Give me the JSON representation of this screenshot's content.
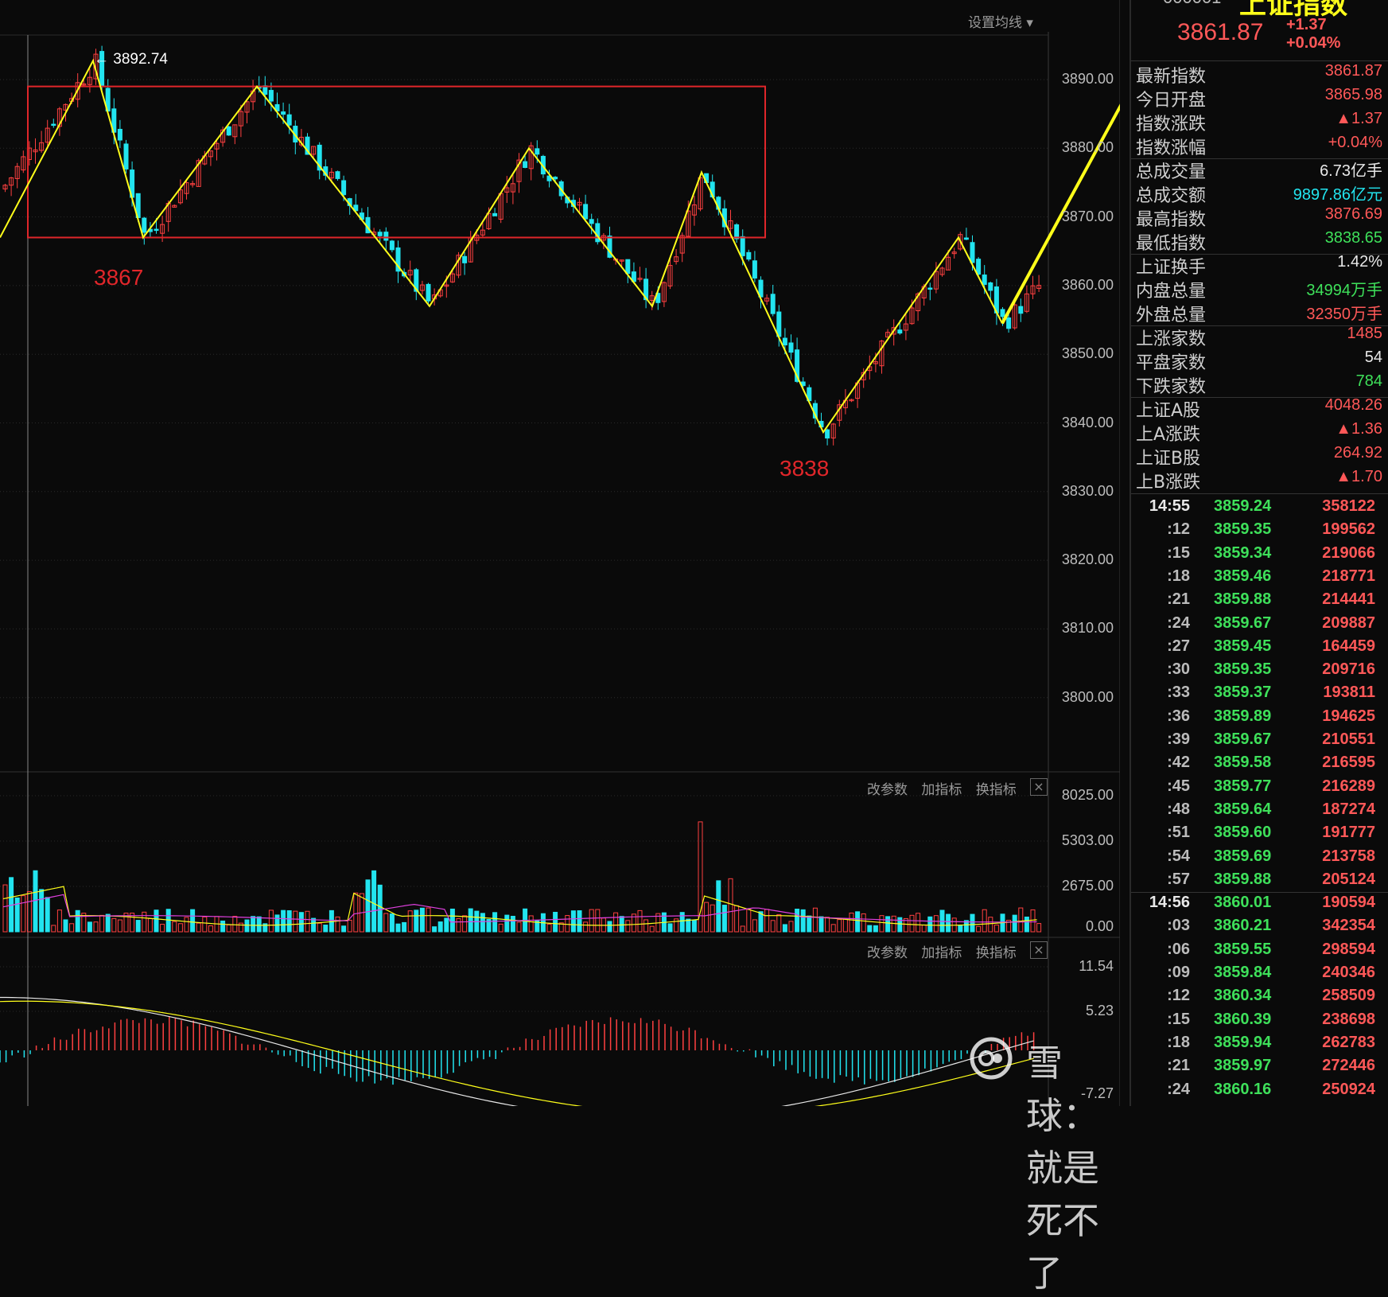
{
  "chart_toolbar": {
    "ma_settings": "设置均线 ▾"
  },
  "price_axis": [
    "3890.00",
    "3880.00",
    "3870.00",
    "3860.00",
    "3850.00",
    "3840.00",
    "3830.00",
    "3820.00",
    "3810.00",
    "3800.00"
  ],
  "volume_panel": {
    "buttons": [
      "改参数",
      "加指标",
      "换指标"
    ],
    "close": "×",
    "axis": [
      "8025.00",
      "5303.00",
      "2675.00",
      "0.00"
    ]
  },
  "macd_panel": {
    "buttons": [
      "改参数",
      "加指标",
      "换指标"
    ],
    "close": "×",
    "axis": [
      "11.54",
      "5.23",
      "-7.27"
    ]
  },
  "annotations": {
    "high_label": "← 3892.74",
    "support_label": "3867",
    "low_label": "3838"
  },
  "colors": {
    "up": "#ff4040",
    "down": "#22e4ef",
    "zigzag": "#ffff1a",
    "box": "#e0262a",
    "ma_vol_1": "#ffff1a",
    "ma_vol_2": "#e040e0",
    "green_value": "#3ee05a",
    "red_value": "#ff5858"
  },
  "header": {
    "code": "000001",
    "name": "上证指数",
    "price": "3861.87",
    "change": "+1.37",
    "change_pct": "+0.04%"
  },
  "stats": [
    {
      "label": "最新指数",
      "value": "3861.87",
      "color": "#ff5858"
    },
    {
      "label": "今日开盘",
      "value": "3865.98",
      "color": "#ff5858"
    },
    {
      "label": "指数涨跌",
      "value": "▲1.37",
      "color": "#ff5858"
    },
    {
      "label": "指数涨幅",
      "value": "+0.04%",
      "color": "#ff5858"
    },
    {
      "label": "总成交量",
      "value": "6.73亿手",
      "color": "#e8e8e8"
    },
    {
      "label": "总成交额",
      "value": "9897.86亿元",
      "color": "#22e4ef"
    },
    {
      "label": "最高指数",
      "value": "3876.69",
      "color": "#ff5858"
    },
    {
      "label": "最低指数",
      "value": "3838.65",
      "color": "#3ee05a"
    },
    {
      "label": "上证换手",
      "value": "1.42%",
      "color": "#e8e8e8"
    },
    {
      "label": "内盘总量",
      "value": "34994万手",
      "color": "#3ee05a"
    },
    {
      "label": "外盘总量",
      "value": "32350万手",
      "color": "#ff5858"
    },
    {
      "label": "上涨家数",
      "value": "1485",
      "color": "#ff5858"
    },
    {
      "label": "平盘家数",
      "value": "54",
      "color": "#e8e8e8"
    },
    {
      "label": "下跌家数",
      "value": "784",
      "color": "#3ee05a"
    },
    {
      "label": "上证A股",
      "value": "4048.26",
      "color": "#ff5858"
    },
    {
      "label": "上A涨跌",
      "value": "▲1.36",
      "color": "#ff5858"
    },
    {
      "label": "上证B股",
      "value": "264.92",
      "color": "#ff5858"
    },
    {
      "label": "上B涨跌",
      "value": "▲1.70",
      "color": "#ff5858"
    }
  ],
  "ticks": [
    {
      "time": "14:55",
      "price": "3859.24",
      "vol": "358122"
    },
    {
      "time": ":12",
      "price": "3859.35",
      "vol": "199562"
    },
    {
      "time": ":15",
      "price": "3859.34",
      "vol": "219066"
    },
    {
      "time": ":18",
      "price": "3859.46",
      "vol": "218771"
    },
    {
      "time": ":21",
      "price": "3859.88",
      "vol": "214441"
    },
    {
      "time": ":24",
      "price": "3859.67",
      "vol": "209887"
    },
    {
      "time": ":27",
      "price": "3859.45",
      "vol": "164459"
    },
    {
      "time": ":30",
      "price": "3859.35",
      "vol": "209716"
    },
    {
      "time": ":33",
      "price": "3859.37",
      "vol": "193811"
    },
    {
      "time": ":36",
      "price": "3859.89",
      "vol": "194625"
    },
    {
      "time": ":39",
      "price": "3859.67",
      "vol": "210551"
    },
    {
      "time": ":42",
      "price": "3859.58",
      "vol": "216595"
    },
    {
      "time": ":45",
      "price": "3859.77",
      "vol": "216289"
    },
    {
      "time": ":48",
      "price": "3859.64",
      "vol": "187274"
    },
    {
      "time": ":51",
      "price": "3859.60",
      "vol": "191777"
    },
    {
      "time": ":54",
      "price": "3859.69",
      "vol": "213758"
    },
    {
      "time": ":57",
      "price": "3859.88",
      "vol": "205124"
    },
    {
      "time": "14:56",
      "price": "3860.01",
      "vol": "190594"
    },
    {
      "time": ":03",
      "price": "3860.21",
      "vol": "342354"
    },
    {
      "time": ":06",
      "price": "3859.55",
      "vol": "298594"
    },
    {
      "time": ":09",
      "price": "3859.84",
      "vol": "240346"
    },
    {
      "time": ":12",
      "price": "3860.34",
      "vol": "258509"
    },
    {
      "time": ":15",
      "price": "3860.39",
      "vol": "238698"
    },
    {
      "time": ":18",
      "price": "3859.94",
      "vol": "262783"
    },
    {
      "time": ":21",
      "price": "3859.97",
      "vol": "272446"
    },
    {
      "time": ":24",
      "price": "3860.16",
      "vol": "250924"
    }
  ],
  "watermark": "雪球：就是死不了",
  "chart_data": {
    "type": "candlestick",
    "price_range": [
      3795,
      3896
    ],
    "zigzag_turning_points": [
      3892.74,
      3867,
      3889,
      3857,
      3880,
      3857,
      3876.5,
      3838.65,
      3867,
      3854.5
    ],
    "zigzag_final_target": 3861.87,
    "box_range": [
      3867,
      3889
    ],
    "volume_range": [
      0,
      8025
    ],
    "macd_range": [
      -7.27,
      11.54
    ]
  }
}
